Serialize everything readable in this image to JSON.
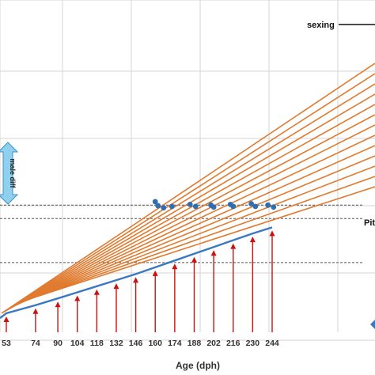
{
  "chart_data": {
    "type": "line",
    "xlabel": "Age (dph)",
    "x_ticks": [
      53,
      74,
      90,
      104,
      118,
      132,
      146,
      160,
      174,
      188,
      202,
      216,
      230,
      244
    ],
    "xlim": [
      45,
      290
    ],
    "grid": true,
    "annotations": {
      "sexing": "sexing",
      "male_diff": "male diff",
      "pit": "Pit"
    },
    "orange_lines": {
      "count": 13,
      "color": "#e07a2e",
      "starts_x": [
        53,
        53,
        53,
        53,
        53,
        53,
        53,
        53,
        53,
        53,
        53,
        53,
        53
      ]
    },
    "series": [
      {
        "name": "",
        "color": "#3a78c0",
        "x": [
          53,
          74,
          90,
          104,
          118,
          132,
          146,
          160,
          174,
          188,
          202,
          216,
          230,
          244
        ],
        "y": [
          0,
          12,
          22,
          31,
          40,
          49,
          58,
          68,
          78,
          88,
          98,
          108,
          118,
          127
        ]
      }
    ],
    "arrows": {
      "color": "#cc1111",
      "x": [
        53,
        74,
        90,
        104,
        118,
        132,
        146,
        160,
        174,
        188,
        202,
        216,
        230,
        244
      ]
    },
    "scatter_points": {
      "color": "#2f6db5",
      "points": [
        {
          "x": 160,
          "y": 165
        },
        {
          "x": 162,
          "y": 159
        },
        {
          "x": 166,
          "y": 156
        },
        {
          "x": 172,
          "y": 158
        },
        {
          "x": 185,
          "y": 161
        },
        {
          "x": 189,
          "y": 158
        },
        {
          "x": 200,
          "y": 160
        },
        {
          "x": 202,
          "y": 157
        },
        {
          "x": 214,
          "y": 161
        },
        {
          "x": 216,
          "y": 158
        },
        {
          "x": 229,
          "y": 162
        },
        {
          "x": 232,
          "y": 158
        },
        {
          "x": 241,
          "y": 160
        },
        {
          "x": 245,
          "y": 157
        }
      ]
    },
    "dashed_levels": [
      160,
      140,
      75
    ]
  }
}
